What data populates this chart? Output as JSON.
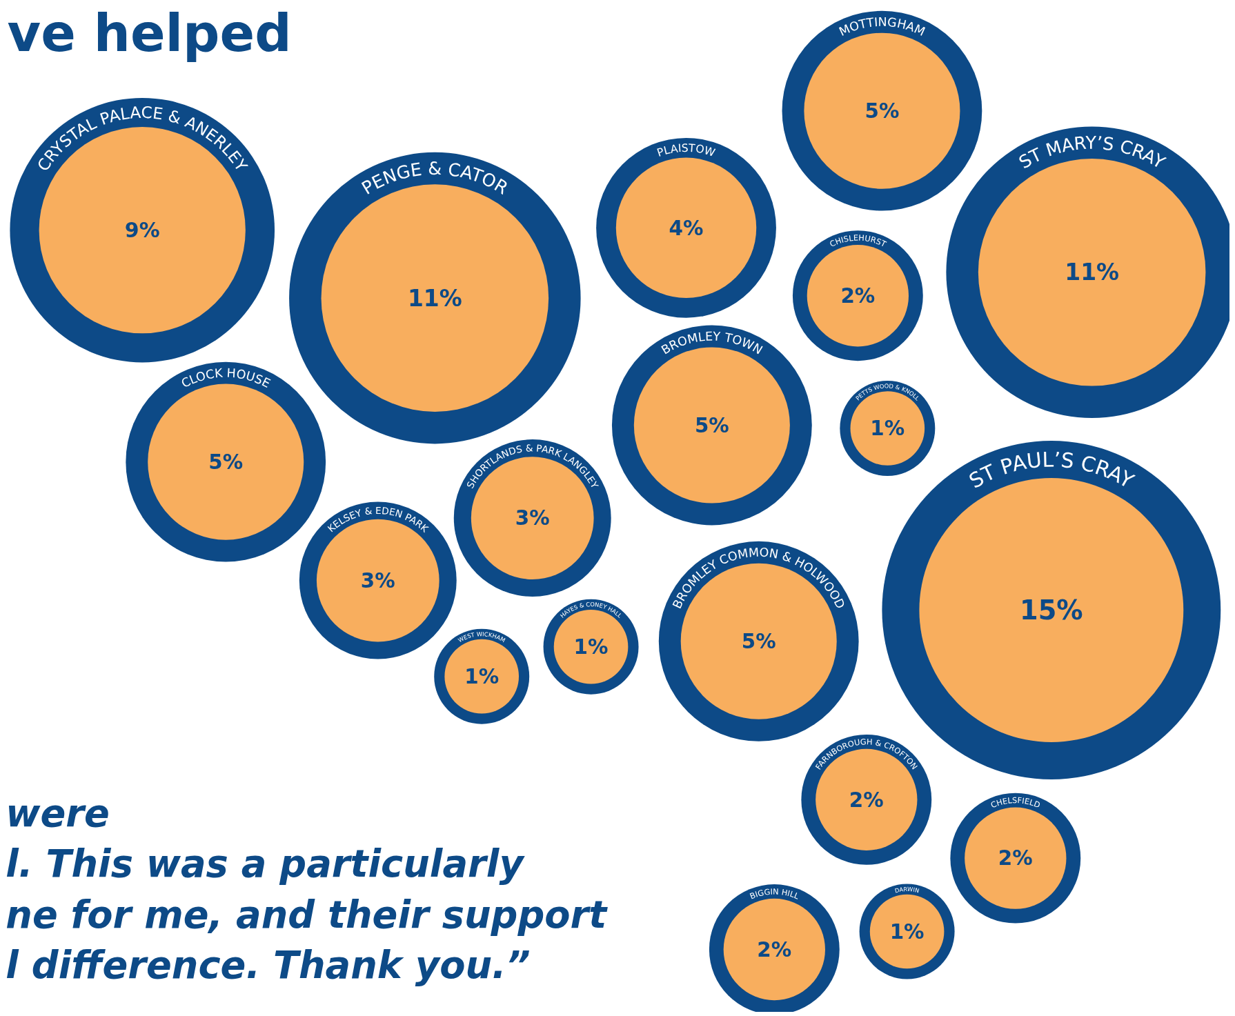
{
  "chart_data": {
    "type": "other",
    "title": "ve helped",
    "categories": [
      "CRYSTAL PALACE & ANERLEY",
      "PENGE & CATOR",
      "PLAISTOW",
      "MOTTINGHAM",
      "ST MARY’S CRAY",
      "CHISLEHURST",
      "CLOCK HOUSE",
      "BROMLEY TOWN",
      "PETTS WOOD & KNOLL",
      "SHORTLANDS & PARK LANGLEY",
      "KELSEY & EDEN PARK",
      "ST PAUL’S CRAY",
      "BROMLEY COMMON & HOLWOOD",
      "WEST WICKHAM",
      "HAYES & CONEY HALL",
      "FARNBOROUGH & CROFTON",
      "CHELSFIELD",
      "BIGGIN HILL",
      "DARWIN"
    ],
    "values": [
      9,
      11,
      4,
      5,
      11,
      2,
      5,
      5,
      1,
      3,
      3,
      15,
      5,
      1,
      1,
      2,
      2,
      2,
      1
    ],
    "value_labels": [
      "9%",
      "11%",
      "4%",
      "5%",
      "11%",
      "2%",
      "5%",
      "5%",
      "1%",
      "3%",
      "3%",
      "15%",
      "5%",
      "1%",
      "1%",
      "2%",
      "2%",
      "2%",
      "1%"
    ],
    "color": "#f8ae5e",
    "annotations": [
      "were\nl. This was a particularly\nne for me, and their support\nl difference. Thank you.”"
    ]
  }
}
